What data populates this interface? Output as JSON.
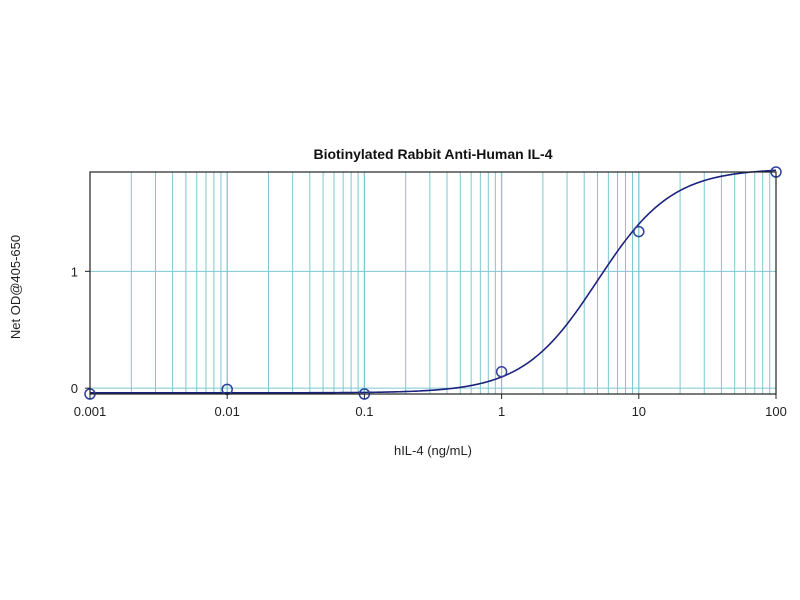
{
  "chart_data": {
    "type": "scatter",
    "title": "Biotinylated Rabbit Anti-Human IL-4",
    "xlabel": "hIL-4 (ng/mL)",
    "ylabel": "Net OD@405-650",
    "x_scale": "log",
    "xlim": [
      0.001,
      100
    ],
    "ylim": [
      -0.05,
      1.85
    ],
    "x_ticks": [
      0.001,
      0.01,
      0.1,
      1,
      10,
      100
    ],
    "x_tick_labels": [
      "0.001",
      "0.01",
      "0.1",
      "1",
      "10",
      "100"
    ],
    "y_ticks": [
      0,
      1
    ],
    "y_tick_labels": [
      "0",
      "1"
    ],
    "grid": true,
    "series": [
      {
        "points": [
          {
            "x": 0.001,
            "y": -0.05
          },
          {
            "x": 0.01,
            "y": -0.01
          },
          {
            "x": 0.1,
            "y": -0.05
          },
          {
            "x": 1,
            "y": 0.14
          },
          {
            "x": 10,
            "y": 1.34
          },
          {
            "x": 100,
            "y": 1.85
          }
        ]
      }
    ],
    "fit_curve": {
      "model": "4PL",
      "bottom": -0.04,
      "top": 1.88,
      "ec50": 5.0,
      "hill": 1.6
    },
    "colors": {
      "grid": "#7fc7d0",
      "curve": "#1a237e",
      "markers": "#2f3f9e",
      "frame": "#222222"
    }
  }
}
